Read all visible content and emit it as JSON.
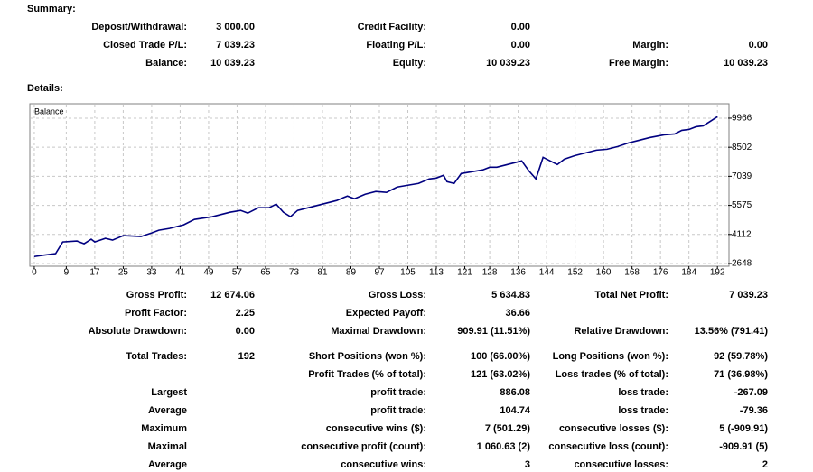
{
  "summary": {
    "title": "Summary:",
    "rows": [
      [
        [
          "Deposit/Withdrawal:",
          "3 000.00"
        ],
        [
          "Credit Facility:",
          "0.00"
        ],
        null
      ],
      [
        [
          "Closed Trade P/L:",
          "7 039.23"
        ],
        [
          "Floating P/L:",
          "0.00"
        ],
        [
          "Margin:",
          "0.00"
        ]
      ],
      [
        [
          "Balance:",
          "10 039.23"
        ],
        [
          "Equity:",
          "10 039.23"
        ],
        [
          "Free Margin:",
          "10 039.23"
        ]
      ]
    ]
  },
  "details": {
    "title": "Details:",
    "rows": [
      [
        [
          "Gross Profit:",
          "12 674.06"
        ],
        [
          "Gross Loss:",
          "5 634.83"
        ],
        [
          "Total Net Profit:",
          "7 039.23"
        ]
      ],
      [
        [
          "Profit Factor:",
          "2.25"
        ],
        [
          "Expected Payoff:",
          "36.66"
        ],
        null
      ],
      [
        [
          "Absolute Drawdown:",
          "0.00"
        ],
        [
          "Maximal Drawdown:",
          "909.91 (11.51%)"
        ],
        [
          "Relative Drawdown:",
          "13.56% (791.41)"
        ]
      ],
      [
        [
          "Total Trades:",
          "192"
        ],
        [
          "Short Positions (won %):",
          "100 (66.00%)"
        ],
        [
          "Long Positions (won %):",
          "92 (59.78%)"
        ]
      ],
      [
        null,
        [
          "Profit Trades (% of total):",
          "121 (63.02%)"
        ],
        [
          "Loss trades (% of total):",
          "71 (36.98%)"
        ]
      ],
      [
        [
          "Largest"
        ],
        [
          "profit trade:",
          "886.08"
        ],
        [
          "loss trade:",
          "-267.09"
        ]
      ],
      [
        [
          "Average"
        ],
        [
          "profit trade:",
          "104.74"
        ],
        [
          "loss trade:",
          "-79.36"
        ]
      ],
      [
        [
          "Maximum"
        ],
        [
          "consecutive wins ($):",
          "7 (501.29)"
        ],
        [
          "consecutive losses ($):",
          "5 (-909.91)"
        ]
      ],
      [
        [
          "Maximal"
        ],
        [
          "consecutive profit (count):",
          "1 060.63 (2)"
        ],
        [
          "consecutive loss (count):",
          "-909.91 (5)"
        ]
      ],
      [
        [
          "Average"
        ],
        [
          "consecutive wins:",
          "3"
        ],
        [
          "consecutive losses:",
          "2"
        ]
      ]
    ]
  },
  "chart_data": {
    "type": "line",
    "series": [
      {
        "name": "Balance",
        "color": "#000080",
        "x": [
          0,
          2,
          6,
          8,
          12,
          14,
          16,
          17,
          20,
          22,
          25,
          30,
          33,
          35,
          38,
          42,
          45,
          50,
          55,
          58,
          60,
          63,
          66,
          68,
          70,
          72,
          74,
          77,
          82,
          85,
          88,
          90,
          93,
          96,
          99,
          102,
          105,
          108,
          111,
          113,
          115,
          116,
          118,
          120,
          123,
          126,
          128,
          130,
          133,
          135,
          137,
          139,
          141,
          143,
          145,
          147,
          149,
          152,
          155,
          158,
          161,
          164,
          167,
          170,
          173,
          177,
          180,
          182,
          184,
          186,
          188,
          190,
          192
        ],
        "values": [
          3000,
          3056,
          3146,
          3735,
          3781,
          3645,
          3871,
          3735,
          3917,
          3826,
          4053,
          4007,
          4189,
          4324,
          4415,
          4596,
          4868,
          5004,
          5231,
          5321,
          5185,
          5457,
          5457,
          5638,
          5231,
          5004,
          5321,
          5457,
          5684,
          5820,
          6046,
          5910,
          6137,
          6273,
          6228,
          6499,
          6590,
          6681,
          6907,
          6952,
          7088,
          6771,
          6681,
          7179,
          7270,
          7360,
          7496,
          7496,
          7632,
          7723,
          7813,
          7315,
          6907,
          7995,
          7813,
          7632,
          7904,
          8085,
          8221,
          8357,
          8402,
          8538,
          8720,
          8855,
          8991,
          9127,
          9172,
          9354,
          9399,
          9535,
          9580,
          9807,
          10039
        ]
      }
    ],
    "xlim": [
      -1,
      195
    ],
    "xticks": [
      0,
      9,
      17,
      25,
      33,
      41,
      49,
      57,
      65,
      73,
      81,
      89,
      97,
      105,
      113,
      121,
      128,
      136,
      144,
      152,
      160,
      168,
      176,
      184,
      192
    ],
    "ylim": [
      2512,
      10646
    ],
    "yticks": [
      2648,
      4112,
      5575,
      7039,
      8502,
      9966
    ],
    "grid": true
  }
}
